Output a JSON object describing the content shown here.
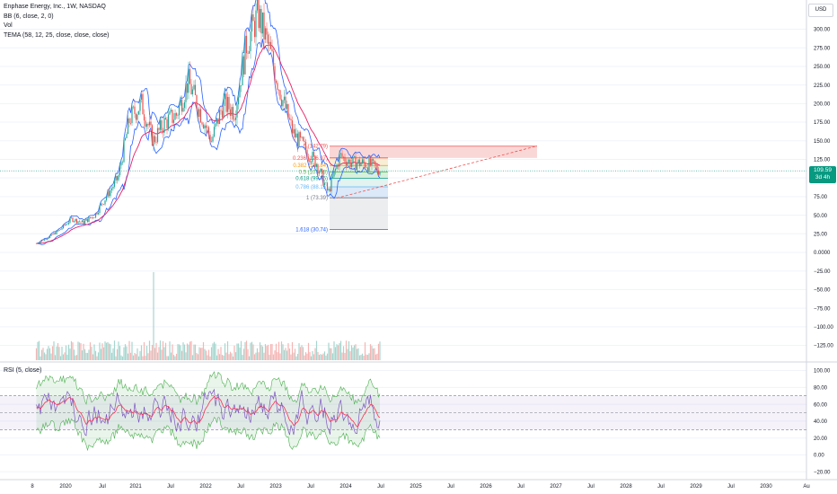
{
  "header": {
    "title": "Enphase Energy, Inc., 1W, NASDAQ",
    "indicators": [
      "BB (6, close, 2, 0)",
      "Vol",
      "TEMA (58, 12, 25, close, close, close)"
    ],
    "currency": "USD"
  },
  "last_price": {
    "value": "109.59",
    "countdown": "3d 4h"
  },
  "rsi_title": "RSI (5, close)",
  "colors": {
    "up": "#26a69a",
    "down": "#ef5350",
    "bb": "#2962ff",
    "tema": "#e91e63",
    "rsi": "#7e57c2",
    "rsi_ma": "#ff2d55",
    "fib_red": "#f8c8c8",
    "fib_blue": "#c9daf8",
    "fib_green": "#d5ecd5",
    "price_line": "#089981"
  },
  "chart_data": [
    {
      "type": "candlestick",
      "title": "Enphase Energy, Inc., 1W, NASDAQ",
      "x_ticks": [
        "8",
        "2020",
        "Jul",
        "2021",
        "Jul",
        "2022",
        "Jul",
        "2023",
        "Jul",
        "2024",
        "Jul",
        "2025",
        "Jul",
        "2026",
        "Jul",
        "2027",
        "Jul",
        "2028",
        "Jul",
        "2029",
        "Jul",
        "2030",
        "Au"
      ],
      "y_ticks": [
        300,
        275,
        250,
        225,
        200,
        175,
        150,
        125,
        100,
        75,
        50,
        25,
        0,
        -25,
        -50,
        -75,
        -100,
        -125
      ],
      "y_tick_labels": [
        "300.00",
        "275.00",
        "250.00",
        "225.00",
        "200.00",
        "175.00",
        "150.00",
        "125.00",
        "100.00",
        "75.00",
        "50.00",
        "25.00",
        "0.0000",
        "−25.00",
        "−50.00",
        "−75.00",
        "−100.00",
        "−125.00"
      ],
      "ylim": [
        -142,
        330
      ],
      "series": [
        {
          "name": "Close",
          "x": [
            "2019-08",
            "2019-10",
            "2019-12",
            "2020-02",
            "2020-04",
            "2020-06",
            "2020-08",
            "2020-10",
            "2020-12",
            "2021-02",
            "2021-04",
            "2021-06",
            "2021-08",
            "2021-10",
            "2021-12",
            "2022-02",
            "2022-04",
            "2022-06",
            "2022-08",
            "2022-10",
            "2022-12",
            "2023-02",
            "2023-04",
            "2023-06",
            "2023-08",
            "2023-10",
            "2023-12",
            "2024-02",
            "2024-04",
            "2024-06",
            "2024-07"
          ],
          "values": [
            12,
            20,
            30,
            45,
            40,
            50,
            75,
            100,
            180,
            200,
            150,
            175,
            185,
            230,
            190,
            150,
            200,
            190,
            280,
            320,
            270,
            210,
            160,
            140,
            120,
            80,
            130,
            120,
            120,
            115,
            109.59
          ]
        }
      ],
      "fibonacci": [
        {
          "level": "0",
          "label": "0 (142.79)",
          "value": 142.79
        },
        {
          "level": "0.236",
          "label": "0.236 (126.97)",
          "value": 126.97
        },
        {
          "level": "0.382",
          "label": "0.382 (116.84)",
          "value": 116.84
        },
        {
          "level": "0.5",
          "label": "0.5 (107.93)",
          "value": 107.93
        },
        {
          "level": "0.618",
          "label": "0.618 (99.75)",
          "value": 99.75
        },
        {
          "level": "0.786",
          "label": "0.786 (88.15)",
          "value": 88.15
        },
        {
          "level": "1",
          "label": "1 (73.39)",
          "value": 73.39
        },
        {
          "level": "1.618",
          "label": "1.618 (30.74)",
          "value": 30.74
        }
      ],
      "volume_note": "bars at bottom of main pane"
    },
    {
      "type": "line",
      "title": "RSI (5, close)",
      "y_ticks": [
        100,
        80,
        60,
        40,
        20,
        0,
        -20
      ],
      "y_tick_labels": [
        "100.00",
        "80.00",
        "60.00",
        "40.00",
        "20.00",
        "0.00",
        "−20.00"
      ],
      "ylim": [
        -25,
        108
      ],
      "bands": [
        30,
        50,
        70
      ]
    }
  ]
}
